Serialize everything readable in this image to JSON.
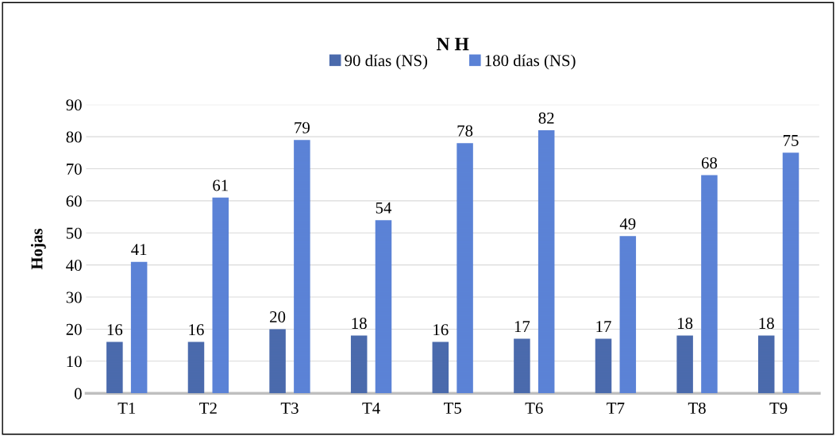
{
  "chart_data": {
    "type": "bar",
    "title": "N H",
    "ylabel": "Hojas",
    "categories": [
      "T1",
      "T2",
      "T3",
      "T4",
      "T5",
      "T6",
      "T7",
      "T8",
      "T9"
    ],
    "series": [
      {
        "name": "90 días (NS)",
        "color": "#4a6aac",
        "values": [
          16,
          16,
          20,
          18,
          16,
          17,
          17,
          18,
          18
        ]
      },
      {
        "name": "180 días (NS)",
        "color": "#5b82d6",
        "values": [
          41,
          61,
          79,
          54,
          78,
          82,
          49,
          68,
          75
        ]
      }
    ],
    "ylim": [
      0,
      90
    ],
    "yticks": [
      0,
      10,
      20,
      30,
      40,
      50,
      60,
      70,
      80,
      90
    ],
    "grid": "y",
    "legend": "top",
    "data_labels": true
  }
}
